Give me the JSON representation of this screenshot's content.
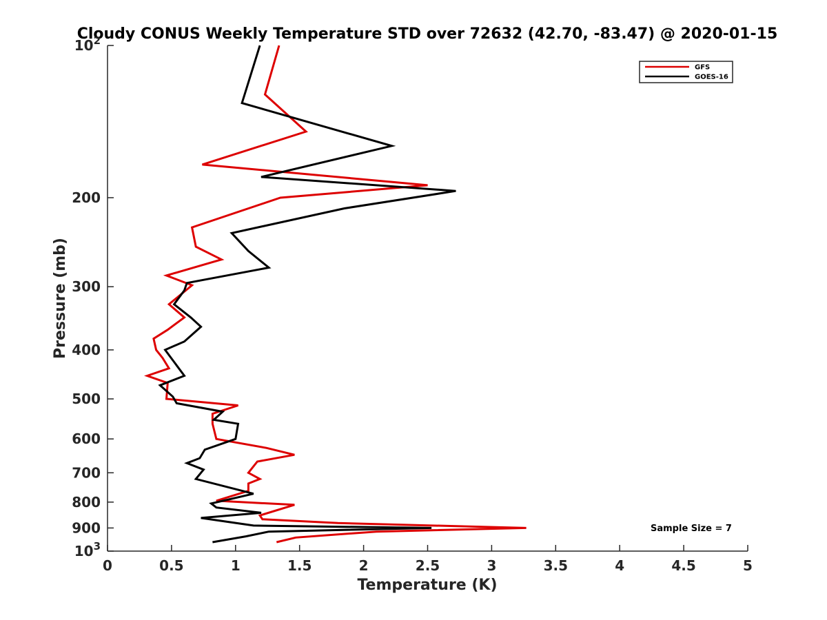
{
  "chart_data": {
    "type": "line",
    "title": "Cloudy CONUS Weekly Temperature STD over 72632 (42.70, -83.47) @ 2020-01-15",
    "xlabel": "Temperature (K)",
    "ylabel": "Pressure (mb)",
    "xlim": [
      0,
      5
    ],
    "ylim": [
      100,
      1000
    ],
    "y_scale": "log",
    "y_reversed": true,
    "grid": false,
    "legend_position": "top-right",
    "x_ticks": [
      {
        "value": 0,
        "label": "0"
      },
      {
        "value": 0.5,
        "label": "0.5"
      },
      {
        "value": 1,
        "label": "1"
      },
      {
        "value": 1.5,
        "label": "1.5"
      },
      {
        "value": 2,
        "label": "2"
      },
      {
        "value": 2.5,
        "label": "2.5"
      },
      {
        "value": 3,
        "label": "3"
      },
      {
        "value": 3.5,
        "label": "3.5"
      },
      {
        "value": 4,
        "label": "4"
      },
      {
        "value": 4.5,
        "label": "4.5"
      },
      {
        "value": 5,
        "label": "5"
      }
    ],
    "y_ticks": [
      {
        "value": 100,
        "label": "10",
        "sup": "2"
      },
      {
        "value": 200,
        "label": "200",
        "sup": ""
      },
      {
        "value": 300,
        "label": "300",
        "sup": ""
      },
      {
        "value": 400,
        "label": "400",
        "sup": ""
      },
      {
        "value": 500,
        "label": "500",
        "sup": ""
      },
      {
        "value": 600,
        "label": "600",
        "sup": ""
      },
      {
        "value": 700,
        "label": "700",
        "sup": ""
      },
      {
        "value": 800,
        "label": "800",
        "sup": ""
      },
      {
        "value": 900,
        "label": "900",
        "sup": ""
      },
      {
        "value": 1000,
        "label": "10",
        "sup": "3"
      }
    ],
    "annotation": "Sample Size = 7",
    "series": [
      {
        "name": "GFS",
        "color": "#dd0000",
        "x": [
          1.34,
          1.23,
          1.55,
          0.74,
          2.5,
          1.35,
          0.66,
          0.69,
          0.89,
          0.46,
          0.66,
          0.48,
          0.6,
          0.47,
          0.36,
          0.38,
          0.43,
          0.48,
          0.31,
          0.47,
          0.46,
          1.02,
          0.82,
          0.82,
          0.85,
          1.24,
          1.46,
          1.17,
          1.1,
          1.19,
          1.1,
          1.1,
          0.85,
          1.46,
          1.19,
          1.21,
          1.8,
          3.27,
          2.1,
          1.47,
          1.32
        ],
        "y": [
          100,
          125,
          148,
          172,
          189,
          200,
          229,
          250,
          265,
          285,
          298,
          325,
          345,
          365,
          380,
          400,
          415,
          435,
          450,
          465,
          500,
          515,
          535,
          560,
          600,
          625,
          645,
          665,
          700,
          720,
          735,
          760,
          795,
          810,
          850,
          865,
          880,
          900,
          915,
          940,
          960
        ]
      },
      {
        "name": "GOES-16",
        "color": "#000000",
        "x": [
          1.19,
          1.05,
          2.22,
          1.2,
          2.72,
          1.85,
          0.97,
          1.1,
          1.26,
          0.62,
          0.6,
          0.52,
          0.65,
          0.73,
          0.6,
          0.45,
          0.6,
          0.41,
          0.51,
          0.54,
          0.9,
          0.83,
          1.02,
          1.0,
          0.76,
          0.72,
          0.62,
          0.75,
          0.73,
          0.69,
          1.14,
          0.81,
          0.85,
          1.2,
          0.73,
          1.14,
          2.53,
          1.26,
          1.08,
          0.82
        ],
        "y": [
          100,
          130,
          158,
          182,
          194,
          210,
          235,
          255,
          275,
          295,
          305,
          325,
          345,
          360,
          385,
          400,
          450,
          470,
          495,
          510,
          530,
          550,
          560,
          600,
          630,
          655,
          670,
          690,
          700,
          720,
          770,
          805,
          820,
          840,
          860,
          890,
          900,
          915,
          935,
          960
        ]
      }
    ]
  }
}
